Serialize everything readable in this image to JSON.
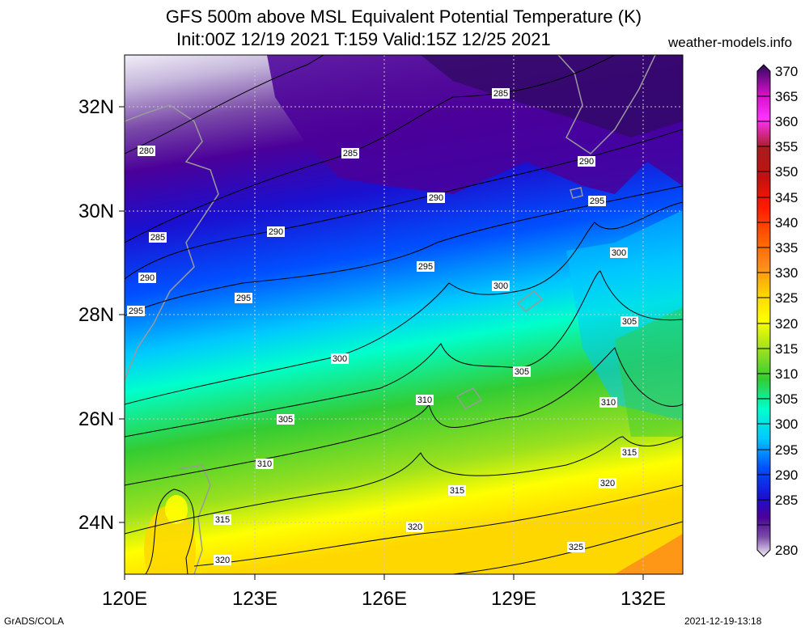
{
  "header": {
    "title_line1": "GFS 500m above MSL Equivalent Potential Temperature (K)",
    "title_line2": "Init:00Z 12/19 2021 T:159 Valid:15Z 12/25 2021",
    "website": "weather-models.info"
  },
  "axes": {
    "lat_labels": [
      "32N",
      "30N",
      "28N",
      "26N",
      "24N"
    ],
    "lon_labels": [
      "120E",
      "123E",
      "126E",
      "129E",
      "132E"
    ]
  },
  "colorbar": {
    "labels": [
      "370",
      "365",
      "360",
      "355",
      "350",
      "345",
      "340",
      "335",
      "330",
      "325",
      "320",
      "315",
      "310",
      "305",
      "300",
      "295",
      "290",
      "285",
      "280"
    ],
    "colors": [
      "#2d0a5e",
      "#d40fc8",
      "#ff32ff",
      "#a81d1d",
      "#c41010",
      "#ff1a00",
      "#ff5a00",
      "#ff8c1a",
      "#ffd700",
      "#ffff00",
      "#9be11e",
      "#33cc33",
      "#00ffcc",
      "#00c8ff",
      "#0050ff",
      "#1a10d0",
      "#4b0099",
      "#7a4aa8",
      "#c6b8dc",
      "#f2eef8"
    ]
  },
  "contour_labels": [
    "280",
    "285",
    "290",
    "295",
    "300",
    "305",
    "310",
    "315",
    "320",
    "325"
  ],
  "footer": {
    "left": "GrADS/COLA",
    "right": "2021-12-19-13:18"
  }
}
